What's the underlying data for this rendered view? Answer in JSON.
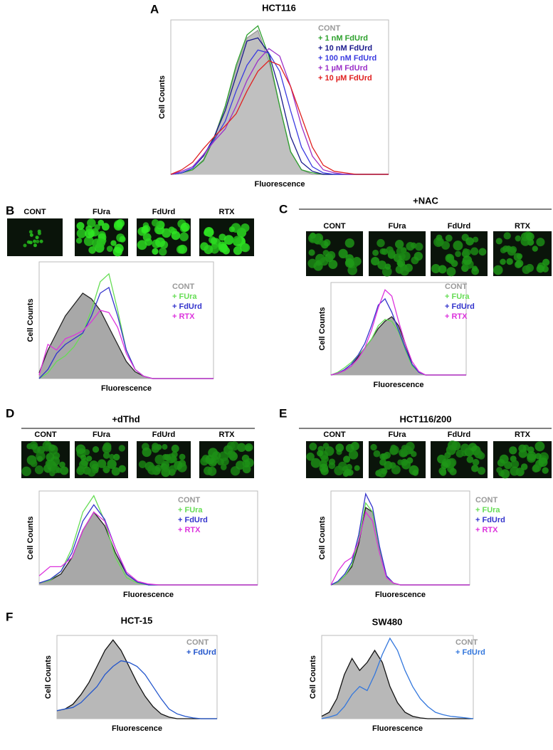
{
  "chart_data": [
    {
      "type": "line",
      "panel": "A",
      "title": "HCT116",
      "ylabel": "Cell Counts",
      "xlabel": "Fluorescence",
      "x": [
        0,
        5,
        10,
        15,
        20,
        25,
        30,
        35,
        40,
        45,
        50,
        55,
        60,
        65,
        70,
        75,
        80,
        85,
        90,
        95,
        100
      ],
      "xlim": [
        0,
        100
      ],
      "ylim": [
        0,
        100
      ],
      "series": [
        {
          "name": "CONT",
          "color": "#999999",
          "fill": "#c0c0c0",
          "label_color": "#999999",
          "values": [
            0,
            1,
            3,
            10,
            25,
            45,
            70,
            90,
            95,
            75,
            45,
            15,
            3,
            0,
            0,
            0,
            0,
            0,
            0,
            0,
            0
          ]
        },
        {
          "name": "+ 1 nM FdUrd",
          "color": "#2ca02c",
          "values": [
            0,
            1,
            3,
            9,
            24,
            45,
            72,
            92,
            98,
            78,
            45,
            15,
            3,
            1,
            0,
            0,
            0,
            0,
            0,
            0,
            0
          ]
        },
        {
          "name": "+ 10 nM FdUrd",
          "color": "#1a1a8c",
          "values": [
            0,
            1,
            4,
            12,
            25,
            42,
            65,
            88,
            90,
            80,
            55,
            25,
            8,
            2,
            0,
            0,
            0,
            0,
            0,
            0,
            0
          ]
        },
        {
          "name": "+ 100 nM FdUrd",
          "color": "#3a3ae0",
          "values": [
            0,
            1,
            4,
            13,
            23,
            35,
            55,
            72,
            82,
            80,
            68,
            42,
            18,
            5,
            1,
            0,
            0,
            0,
            0,
            0,
            0
          ]
        },
        {
          "name": "+ 1 µM FdUrd",
          "color": "#9b30c8",
          "values": [
            0,
            2,
            5,
            13,
            22,
            30,
            45,
            62,
            75,
            83,
            78,
            58,
            32,
            12,
            3,
            1,
            0,
            0,
            0,
            0,
            0
          ]
        },
        {
          "name": "+ 10 µM FdUrd",
          "color": "#e02020",
          "values": [
            0,
            3,
            8,
            17,
            25,
            32,
            40,
            55,
            68,
            75,
            72,
            58,
            38,
            18,
            6,
            2,
            1,
            0,
            0,
            0,
            0
          ]
        }
      ]
    },
    {
      "type": "line",
      "panel": "B",
      "image_labels": [
        "CONT",
        "FUra",
        "FdUrd",
        "RTX"
      ],
      "ylabel": "Cell Counts",
      "xlabel": "Fluorescence",
      "x": [
        0,
        5,
        10,
        15,
        20,
        25,
        30,
        35,
        40,
        45,
        50,
        55,
        60,
        65,
        70,
        75,
        80,
        85,
        90,
        95,
        100
      ],
      "xlim": [
        0,
        100
      ],
      "ylim": [
        0,
        100
      ],
      "series": [
        {
          "name": "CONT",
          "color": "#222222",
          "fill": "#a8a8a8",
          "label_color": "#999999",
          "values": [
            5,
            25,
            40,
            55,
            65,
            75,
            70,
            60,
            45,
            30,
            15,
            6,
            2,
            0,
            0,
            0,
            0,
            0,
            0,
            0,
            0
          ]
        },
        {
          "name": "+ FUra",
          "color": "#66dd55",
          "values": [
            0,
            5,
            15,
            20,
            28,
            40,
            60,
            85,
            92,
            60,
            25,
            8,
            2,
            0,
            0,
            0,
            0,
            0,
            0,
            0,
            0
          ]
        },
        {
          "name": "+ FdUrd",
          "color": "#3333cc",
          "values": [
            0,
            8,
            22,
            30,
            35,
            40,
            55,
            75,
            80,
            55,
            25,
            8,
            2,
            0,
            0,
            0,
            0,
            0,
            0,
            0,
            0
          ]
        },
        {
          "name": "+ RTX",
          "color": "#dd33dd",
          "values": [
            3,
            30,
            25,
            35,
            38,
            42,
            50,
            60,
            58,
            45,
            22,
            8,
            2,
            0,
            0,
            0,
            0,
            0,
            0,
            0,
            0
          ]
        }
      ]
    },
    {
      "type": "line",
      "panel": "C",
      "title": "+NAC",
      "image_labels": [
        "CONT",
        "FUra",
        "FdUrd",
        "RTX"
      ],
      "ylabel": "Cell Counts",
      "xlabel": "Fluorescence",
      "x": [
        0,
        5,
        10,
        15,
        20,
        25,
        30,
        35,
        40,
        45,
        50,
        55,
        60,
        65,
        70,
        75,
        80,
        85,
        90,
        95,
        100
      ],
      "xlim": [
        0,
        100
      ],
      "ylim": [
        0,
        100
      ],
      "series": [
        {
          "name": "CONT",
          "color": "#222222",
          "fill": "#a8a8a8",
          "label_color": "#999999",
          "values": [
            0,
            2,
            5,
            10,
            20,
            30,
            40,
            52,
            60,
            65,
            55,
            35,
            12,
            3,
            0,
            0,
            0,
            0,
            0,
            0,
            0
          ]
        },
        {
          "name": "+ FUra",
          "color": "#66dd55",
          "values": [
            0,
            3,
            8,
            14,
            22,
            30,
            40,
            55,
            62,
            60,
            48,
            28,
            10,
            3,
            0,
            0,
            0,
            0,
            0,
            0,
            0
          ]
        },
        {
          "name": "+ FdUrd",
          "color": "#3333cc",
          "values": [
            0,
            2,
            6,
            12,
            22,
            35,
            55,
            78,
            85,
            70,
            50,
            30,
            12,
            3,
            0,
            0,
            0,
            0,
            0,
            0,
            0
          ]
        },
        {
          "name": "+ RTX",
          "color": "#dd33dd",
          "values": [
            0,
            2,
            5,
            10,
            18,
            30,
            50,
            75,
            95,
            88,
            60,
            35,
            15,
            4,
            0,
            0,
            0,
            0,
            0,
            0,
            0
          ]
        }
      ]
    },
    {
      "type": "line",
      "panel": "D",
      "title": "+dThd",
      "image_labels": [
        "CONT",
        "FUra",
        "FdUrd",
        "RTX"
      ],
      "ylabel": "Cell Counts",
      "xlabel": "Fluorescence",
      "x": [
        0,
        5,
        10,
        15,
        20,
        25,
        30,
        35,
        40,
        45,
        50,
        55,
        60,
        65,
        70,
        75,
        80,
        85,
        90,
        95,
        100
      ],
      "xlim": [
        0,
        100
      ],
      "ylim": [
        0,
        100
      ],
      "series": [
        {
          "name": "CONT",
          "color": "#222222",
          "fill": "#a8a8a8",
          "label_color": "#999999",
          "values": [
            2,
            5,
            12,
            30,
            60,
            80,
            65,
            35,
            12,
            3,
            0,
            0,
            0,
            0,
            0,
            0,
            0,
            0,
            0,
            0,
            0
          ]
        },
        {
          "name": "+ FUra",
          "color": "#66dd55",
          "values": [
            2,
            5,
            15,
            40,
            80,
            98,
            70,
            30,
            8,
            2,
            0,
            0,
            0,
            0,
            0,
            0,
            0,
            0,
            0,
            0,
            0
          ]
        },
        {
          "name": "+ FdUrd",
          "color": "#3333cc",
          "values": [
            2,
            6,
            15,
            35,
            70,
            88,
            72,
            40,
            12,
            3,
            0,
            0,
            0,
            0,
            0,
            0,
            0,
            0,
            0,
            0,
            0
          ]
        },
        {
          "name": "+ RTX",
          "color": "#dd33dd",
          "values": [
            10,
            20,
            20,
            30,
            60,
            80,
            70,
            40,
            14,
            4,
            1,
            0,
            0,
            0,
            0,
            0,
            0,
            0,
            0,
            0,
            0
          ]
        }
      ]
    },
    {
      "type": "line",
      "panel": "E",
      "title": "HCT116/200",
      "image_labels": [
        "CONT",
        "FUra",
        "FdUrd",
        "RTX"
      ],
      "ylabel": "Cell Counts",
      "xlabel": "Fluorescence",
      "x": [
        0,
        5,
        10,
        15,
        20,
        25,
        30,
        35,
        40,
        45,
        50,
        55,
        60,
        65,
        70,
        75,
        80,
        85,
        90,
        95,
        100
      ],
      "xlim": [
        0,
        100
      ],
      "ylim": [
        0,
        100
      ],
      "series": [
        {
          "name": "CONT",
          "color": "#222222",
          "fill": "#a8a8a8",
          "label_color": "#999999",
          "values": [
            0,
            3,
            10,
            20,
            45,
            85,
            80,
            40,
            10,
            2,
            0,
            0,
            0,
            0,
            0,
            0,
            0,
            0,
            0,
            0,
            0
          ]
        },
        {
          "name": "+ FUra",
          "color": "#66dd55",
          "values": [
            0,
            3,
            10,
            22,
            50,
            90,
            80,
            38,
            9,
            2,
            0,
            0,
            0,
            0,
            0,
            0,
            0,
            0,
            0,
            0,
            0
          ]
        },
        {
          "name": "+ FdUrd",
          "color": "#3333cc",
          "values": [
            0,
            4,
            12,
            25,
            55,
            100,
            85,
            42,
            10,
            2,
            0,
            0,
            0,
            0,
            0,
            0,
            0,
            0,
            0,
            0,
            0
          ]
        },
        {
          "name": "+ RTX",
          "color": "#dd33dd",
          "values": [
            0,
            15,
            25,
            30,
            48,
            80,
            70,
            35,
            8,
            2,
            0,
            0,
            0,
            0,
            0,
            0,
            0,
            0,
            0,
            0,
            0
          ]
        }
      ]
    },
    {
      "type": "line",
      "panel": "F",
      "title": "HCT-15",
      "ylabel": "Cell Counts",
      "xlabel": "Fluorescence",
      "x": [
        0,
        5,
        10,
        15,
        20,
        25,
        30,
        35,
        40,
        45,
        50,
        55,
        60,
        65,
        70,
        75,
        80,
        85,
        90,
        95,
        100
      ],
      "xlim": [
        0,
        100
      ],
      "ylim": [
        0,
        100
      ],
      "series": [
        {
          "name": "CONT",
          "color": "#111111",
          "fill": "#b8b8b8",
          "label_color": "#999999",
          "values": [
            10,
            12,
            18,
            30,
            45,
            65,
            85,
            98,
            85,
            65,
            45,
            28,
            15,
            6,
            2,
            0,
            0,
            0,
            0,
            0,
            0
          ]
        },
        {
          "name": "+ FdUrd",
          "color": "#2255cc",
          "values": [
            10,
            12,
            14,
            20,
            30,
            40,
            55,
            65,
            72,
            70,
            65,
            55,
            40,
            25,
            12,
            6,
            3,
            1,
            0,
            0,
            0
          ]
        }
      ]
    },
    {
      "type": "line",
      "title": "SW480",
      "ylabel": "Cell Counts",
      "xlabel": "Fluorescence",
      "x": [
        0,
        5,
        10,
        15,
        20,
        25,
        30,
        35,
        40,
        45,
        50,
        55,
        60,
        65,
        70,
        75,
        80,
        85,
        90,
        95,
        100
      ],
      "xlim": [
        0,
        100
      ],
      "ylim": [
        0,
        100
      ],
      "series": [
        {
          "name": "CONT",
          "color": "#111111",
          "fill": "#b8b8b8",
          "label_color": "#999999",
          "values": [
            3,
            8,
            25,
            55,
            75,
            60,
            70,
            85,
            70,
            40,
            20,
            8,
            3,
            1,
            0,
            0,
            0,
            0,
            0,
            0,
            0
          ]
        },
        {
          "name": "+ FdUrd",
          "color": "#3377dd",
          "values": [
            0,
            2,
            5,
            15,
            30,
            40,
            35,
            55,
            80,
            100,
            85,
            60,
            40,
            25,
            15,
            8,
            5,
            3,
            2,
            1,
            0
          ]
        }
      ]
    }
  ]
}
